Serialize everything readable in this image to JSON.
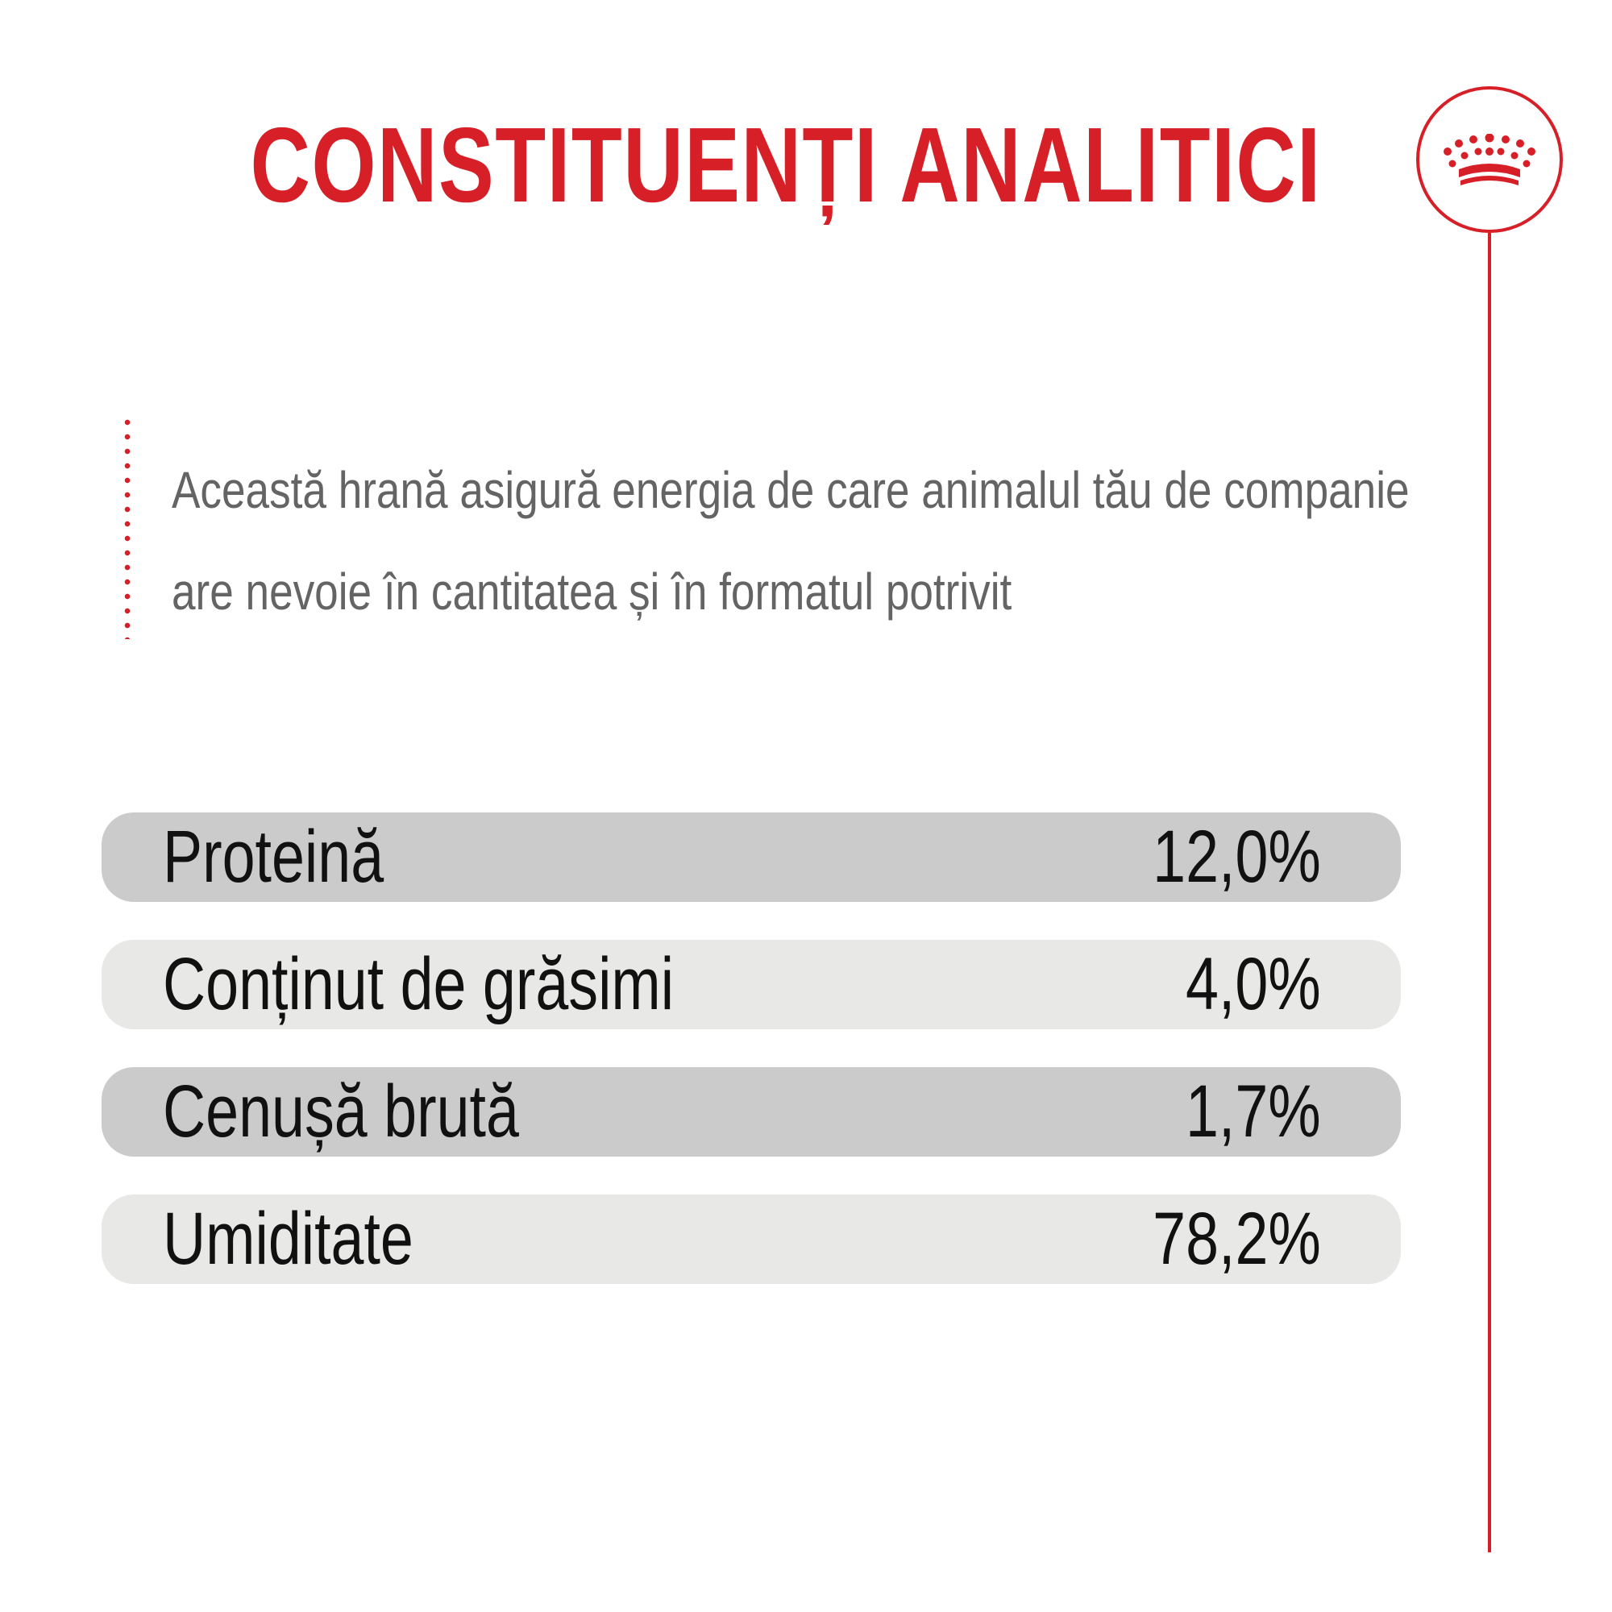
{
  "header": {
    "title": "CONSTITUENȚI ANALITICI"
  },
  "logo": {
    "icon": "crown-icon",
    "color": "#d61f26"
  },
  "description": {
    "line1": "Această hrană asigură energia de care animalul tău de companie",
    "line2": "are nevoie în cantitatea și în formatul potrivit"
  },
  "constituents": [
    {
      "label": "Proteină",
      "value": "12,0%"
    },
    {
      "label": "Conținut de grăsimi",
      "value": "4,0%"
    },
    {
      "label": "Cenușă brută",
      "value": "1,7%"
    },
    {
      "label": "Umiditate",
      "value": "78,2%"
    }
  ],
  "colors": {
    "accent": "#d61f26",
    "row_dark": "#cbcbcc",
    "row_light": "#e8e8e7",
    "description_text": "#646464"
  }
}
